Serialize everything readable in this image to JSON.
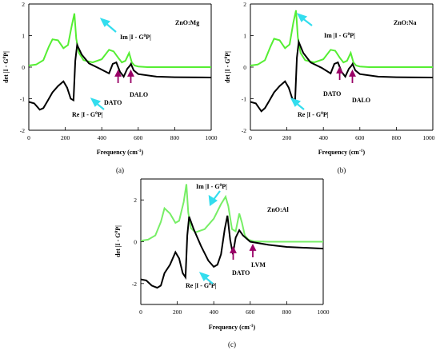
{
  "chart_data": [
    {
      "type": "line",
      "panel_label": "(a)",
      "title": "ZnO:Mg",
      "xlabel": "Frequency (cm⁻¹)",
      "ylabel": "det |I - G⁰P|",
      "xlim": [
        0,
        1000
      ],
      "ylim": [
        -2,
        2
      ],
      "xticks": [
        0,
        200,
        400,
        600,
        800,
        1000
      ],
      "yticks": [
        -2,
        -1,
        0,
        1,
        2
      ],
      "grid": false,
      "series": [
        {
          "name": "Im |I - G⁰P|",
          "color": "#55ee33",
          "x": [
            0,
            40,
            80,
            110,
            130,
            160,
            190,
            215,
            235,
            250,
            260,
            275,
            300,
            350,
            400,
            440,
            465,
            490,
            510,
            530,
            550,
            565,
            580,
            600,
            650,
            700,
            800,
            900,
            1000
          ],
          "y": [
            0.05,
            0.08,
            0.22,
            0.65,
            0.88,
            0.85,
            0.6,
            0.7,
            1.3,
            1.7,
            0.9,
            0.45,
            0.22,
            0.15,
            0.25,
            0.55,
            0.5,
            0.3,
            0.15,
            0.2,
            0.45,
            0.15,
            0.05,
            0.02,
            0,
            0,
            0,
            0,
            0
          ]
        },
        {
          "name": "Re |I - G⁰P|",
          "color": "#000000",
          "x": [
            0,
            30,
            60,
            80,
            100,
            130,
            160,
            190,
            210,
            230,
            245,
            255,
            265,
            290,
            330,
            390,
            440,
            460,
            480,
            500,
            520,
            540,
            555,
            560,
            575,
            600,
            700,
            800,
            1000
          ],
          "y": [
            -1.1,
            -1.15,
            -1.35,
            -1.3,
            -1.1,
            -0.8,
            -0.6,
            -0.45,
            -0.65,
            -1.0,
            -1.05,
            0.2,
            0.7,
            0.4,
            0.12,
            -0.05,
            -0.2,
            0.1,
            0.15,
            -0.15,
            -0.3,
            -0.05,
            0.05,
            0.1,
            -0.1,
            -0.22,
            -0.3,
            -0.32,
            -0.33
          ]
        }
      ],
      "annotations": [
        "Im |I - G⁰P|",
        "Re |I - G⁰P|",
        "DATO",
        "DALO"
      ]
    },
    {
      "type": "line",
      "panel_label": "(b)",
      "title": "ZnO:Na",
      "xlabel": "Frequency (cm⁻¹)",
      "ylabel": "det |I - G⁰P|",
      "xlim": [
        0,
        1000
      ],
      "ylim": [
        -2,
        2
      ],
      "xticks": [
        0,
        200,
        400,
        600,
        800,
        1000
      ],
      "yticks": [
        -2,
        -1,
        0,
        1,
        2
      ],
      "grid": false,
      "series": [
        {
          "name": "Im |I - G⁰P|",
          "color": "#55ee33",
          "x": [
            0,
            40,
            80,
            110,
            130,
            160,
            190,
            215,
            235,
            250,
            260,
            275,
            300,
            350,
            400,
            440,
            465,
            490,
            510,
            530,
            550,
            565,
            580,
            600,
            650,
            700,
            800,
            900,
            1000
          ],
          "y": [
            0.05,
            0.08,
            0.22,
            0.65,
            0.9,
            0.85,
            0.6,
            0.72,
            1.4,
            1.8,
            0.95,
            0.45,
            0.22,
            0.15,
            0.25,
            0.55,
            0.52,
            0.3,
            0.15,
            0.2,
            0.45,
            0.15,
            0.05,
            0.02,
            0,
            0,
            0,
            0,
            0
          ]
        },
        {
          "name": "Re |I - G⁰P|",
          "color": "#000000",
          "x": [
            0,
            30,
            60,
            80,
            100,
            130,
            160,
            190,
            210,
            230,
            245,
            255,
            265,
            290,
            330,
            390,
            440,
            460,
            480,
            500,
            520,
            540,
            555,
            560,
            575,
            600,
            700,
            800,
            1000
          ],
          "y": [
            -1.1,
            -1.15,
            -1.4,
            -1.3,
            -1.1,
            -0.8,
            -0.6,
            -0.45,
            -0.65,
            -1.0,
            -1.05,
            0.3,
            0.8,
            0.45,
            0.15,
            -0.02,
            -0.2,
            0.1,
            0.15,
            -0.15,
            -0.3,
            -0.05,
            0.05,
            0.1,
            -0.1,
            -0.22,
            -0.3,
            -0.32,
            -0.33
          ]
        }
      ],
      "annotations": [
        "Im |I - G⁰P|",
        "Re |I - G⁰P|",
        "DATO",
        "DALO"
      ]
    },
    {
      "type": "line",
      "panel_label": "(c)",
      "title": "ZnO:Al",
      "xlabel": "Frequency (cm⁻¹)",
      "ylabel": "det |I - G⁰P|",
      "xlim": [
        0,
        1000
      ],
      "ylim": [
        -3,
        3
      ],
      "xticks": [
        0,
        200,
        400,
        600,
        800,
        1000
      ],
      "yticks": [
        -2,
        0,
        2
      ],
      "grid": false,
      "series": [
        {
          "name": "Im |I - G⁰P|",
          "color": "#55ee33",
          "x": [
            0,
            40,
            80,
            110,
            130,
            160,
            190,
            210,
            235,
            250,
            260,
            275,
            300,
            350,
            400,
            440,
            465,
            480,
            500,
            520,
            540,
            555,
            570,
            590,
            620,
            700,
            800,
            900,
            1000
          ],
          "y": [
            0.05,
            0.1,
            0.3,
            0.95,
            1.6,
            1.35,
            0.9,
            1.0,
            1.9,
            2.75,
            1.4,
            0.65,
            0.45,
            0.6,
            1.1,
            1.8,
            2.15,
            1.7,
            0.6,
            0.5,
            1.35,
            0.9,
            0.3,
            0.1,
            0.02,
            0,
            0,
            0,
            0
          ]
        },
        {
          "name": "Re |I - G⁰P|",
          "color": "#000000",
          "x": [
            0,
            30,
            60,
            90,
            110,
            130,
            160,
            190,
            210,
            230,
            245,
            255,
            265,
            290,
            330,
            370,
            400,
            420,
            440,
            460,
            475,
            490,
            505,
            520,
            540,
            560,
            600,
            700,
            800,
            1000
          ],
          "y": [
            -1.8,
            -1.85,
            -2.1,
            -2.2,
            -2.1,
            -1.5,
            -1.1,
            -0.5,
            -0.8,
            -1.5,
            -1.7,
            0.3,
            1.2,
            0.6,
            -0.2,
            -0.9,
            -1.2,
            -1.1,
            -0.6,
            0.6,
            1.25,
            0.1,
            -0.6,
            0.2,
            0.55,
            0.3,
            0.0,
            -0.15,
            -0.25,
            -0.33
          ]
        }
      ],
      "annotations": [
        "Im |I - G⁰P|",
        "Re |I - G⁰P|",
        "DATO",
        "LVM"
      ]
    }
  ]
}
